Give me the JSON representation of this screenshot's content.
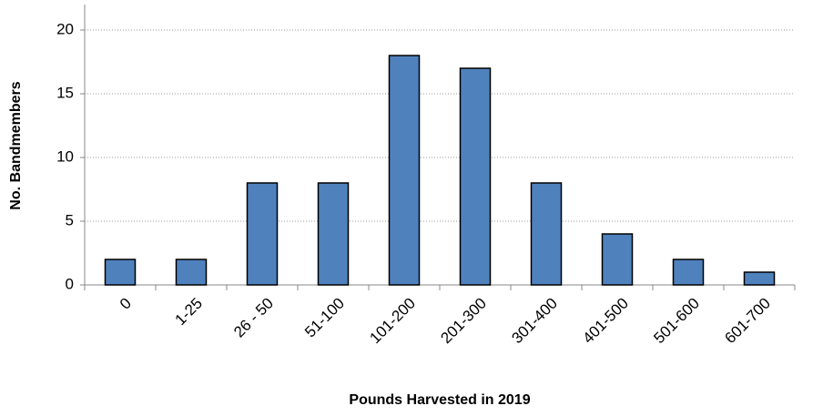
{
  "chart_data": {
    "type": "bar",
    "xlabel": "Pounds Harvested in 2019",
    "ylabel": "No. Bandmembers",
    "categories": [
      "0",
      "1-25",
      "26 - 50",
      "51-100",
      "101-200",
      "201-300",
      "301-400",
      "401-500",
      "501-600",
      "601-700"
    ],
    "values": [
      2,
      2,
      8,
      8,
      18,
      17,
      8,
      4,
      2,
      1
    ],
    "color": "#4f81bd",
    "ylim": [
      0,
      22
    ],
    "yticks": [
      0,
      5,
      10,
      15,
      20
    ],
    "grid": true
  }
}
